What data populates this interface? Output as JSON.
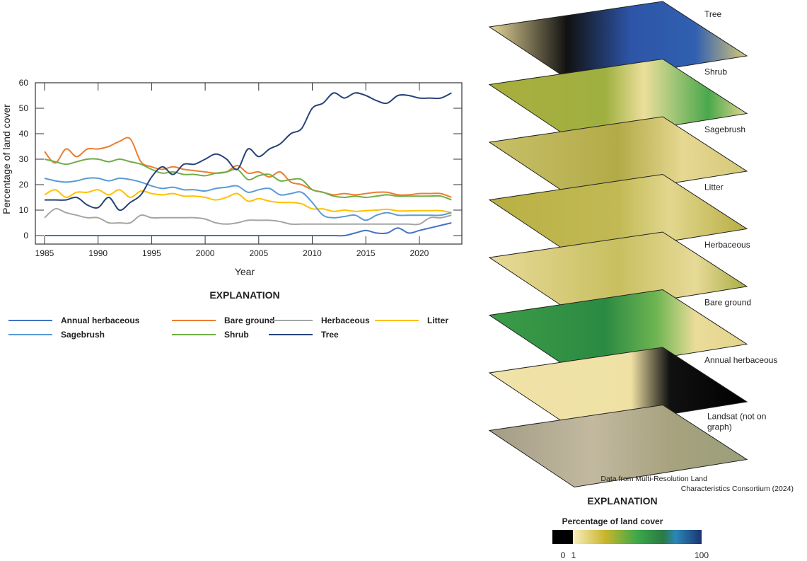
{
  "chart_data": {
    "type": "line",
    "xlabel": "Year",
    "ylabel": "Percentage of land cover",
    "ylim": [
      0,
      60
    ],
    "xlim": [
      1985,
      2023
    ],
    "yticks": [
      "0",
      "10",
      "20",
      "30",
      "40",
      "50",
      "60"
    ],
    "xticks": [
      "1985",
      "1990",
      "1995",
      "2000",
      "2005",
      "2010",
      "2015",
      "2020"
    ],
    "grid": false,
    "legend_title": "EXPLANATION",
    "legend_position": "bottom",
    "x": [
      1985,
      1986,
      1987,
      1988,
      1989,
      1990,
      1991,
      1992,
      1993,
      1994,
      1995,
      1996,
      1997,
      1998,
      1999,
      2000,
      2001,
      2002,
      2003,
      2004,
      2005,
      2006,
      2007,
      2008,
      2009,
      2010,
      2011,
      2012,
      2013,
      2014,
      2015,
      2016,
      2017,
      2018,
      2019,
      2020,
      2021,
      2022,
      2023
    ],
    "series": [
      {
        "name": "Annual herbaceous",
        "color": "#4472c4",
        "values": [
          0,
          0,
          0,
          0,
          0,
          0,
          0,
          0,
          0,
          0,
          0,
          0,
          0,
          0,
          0,
          0,
          0,
          0,
          0,
          0,
          0,
          0,
          0,
          0,
          0,
          0,
          0,
          0,
          0,
          1,
          2,
          1,
          1,
          3,
          1,
          2,
          3,
          4,
          5
        ]
      },
      {
        "name": "Bare ground",
        "color": "#ed7d31",
        "values": [
          33,
          28.5,
          34,
          31,
          34,
          34,
          35,
          37,
          38,
          29,
          27,
          26,
          27,
          26,
          25.5,
          25,
          24.5,
          25,
          27.5,
          24.5,
          25,
          23,
          25,
          21,
          20,
          18,
          17,
          16,
          16.5,
          16,
          16.5,
          17,
          17,
          16,
          16,
          16.5,
          16.5,
          16.5,
          15
        ]
      },
      {
        "name": "Herbaceous",
        "color": "#a5a5a5",
        "values": [
          7,
          10.5,
          9,
          8,
          7,
          7,
          5,
          5,
          5,
          8,
          7,
          7,
          7,
          7,
          7,
          6.5,
          5,
          4.5,
          5,
          6,
          6,
          6,
          5.5,
          4.5,
          4.5,
          4.5,
          4.5,
          4.5,
          4.5,
          4.5,
          4.5,
          4.5,
          4.5,
          4.5,
          4.5,
          4.5,
          7,
          7,
          8
        ]
      },
      {
        "name": "Litter",
        "color": "#ffc000",
        "values": [
          16,
          18,
          15,
          17,
          17,
          18,
          16,
          18,
          15,
          17.5,
          16.5,
          16,
          16.5,
          15.5,
          15.5,
          15,
          14,
          15,
          16.5,
          13.5,
          14.5,
          13.5,
          13,
          13,
          12.5,
          10.5,
          10.5,
          9.5,
          10,
          9.5,
          9.8,
          10,
          10.3,
          9.7,
          9.7,
          9.8,
          9.8,
          9.8,
          9
        ]
      },
      {
        "name": "Sagebrush",
        "color": "#5b9bd5",
        "values": [
          22.5,
          21.5,
          21,
          21.5,
          22.5,
          22.5,
          21.5,
          22.5,
          22,
          21,
          19.5,
          18.5,
          19,
          18,
          18,
          17.5,
          18.5,
          19,
          19.5,
          17,
          18,
          18.5,
          16,
          16.5,
          17,
          13,
          8,
          7,
          7.5,
          8,
          6,
          8,
          9,
          8,
          8,
          8,
          8,
          8,
          9
        ]
      },
      {
        "name": "Shrub",
        "color": "#70ad47",
        "values": [
          30,
          29,
          28,
          29,
          30,
          30,
          29,
          30,
          29,
          28,
          26,
          24.5,
          25,
          24,
          24,
          23.5,
          24.5,
          25,
          26,
          22,
          23.5,
          24,
          21.5,
          22,
          22,
          18,
          17,
          15.5,
          15,
          15.5,
          15,
          15.5,
          16,
          15.5,
          15.5,
          15.5,
          15.5,
          15.5,
          14
        ]
      },
      {
        "name": "Tree",
        "color": "#264478",
        "values": [
          14,
          14,
          14,
          15,
          12,
          11,
          15,
          10,
          13,
          16,
          23,
          27,
          24,
          28,
          28,
          30,
          32,
          30,
          26,
          34,
          31,
          34,
          36,
          40,
          42,
          50,
          52,
          56,
          54,
          56,
          55,
          53,
          52,
          55,
          55,
          54,
          54,
          54,
          56
        ]
      }
    ]
  },
  "maps": {
    "layers": [
      "Tree",
      "Shrub",
      "Sagebrush",
      "Litter",
      "Herbaceous",
      "Bare ground",
      "Annual herbaceous",
      "Landsat (not on graph)"
    ],
    "credit_line1": "Data from Multi-Resolution Land",
    "credit_line2": "Characteristics Consortium (2024)",
    "legend_title": "EXPLANATION",
    "colorbar_title": "Percentage of land cover",
    "colorbar_min": "0",
    "colorbar_low": "1",
    "colorbar_max": "100",
    "colors": {
      "zero": "#000000",
      "low": "#f6e9b4",
      "mid": "#2ea44f",
      "high": "#1f3f8f"
    }
  }
}
